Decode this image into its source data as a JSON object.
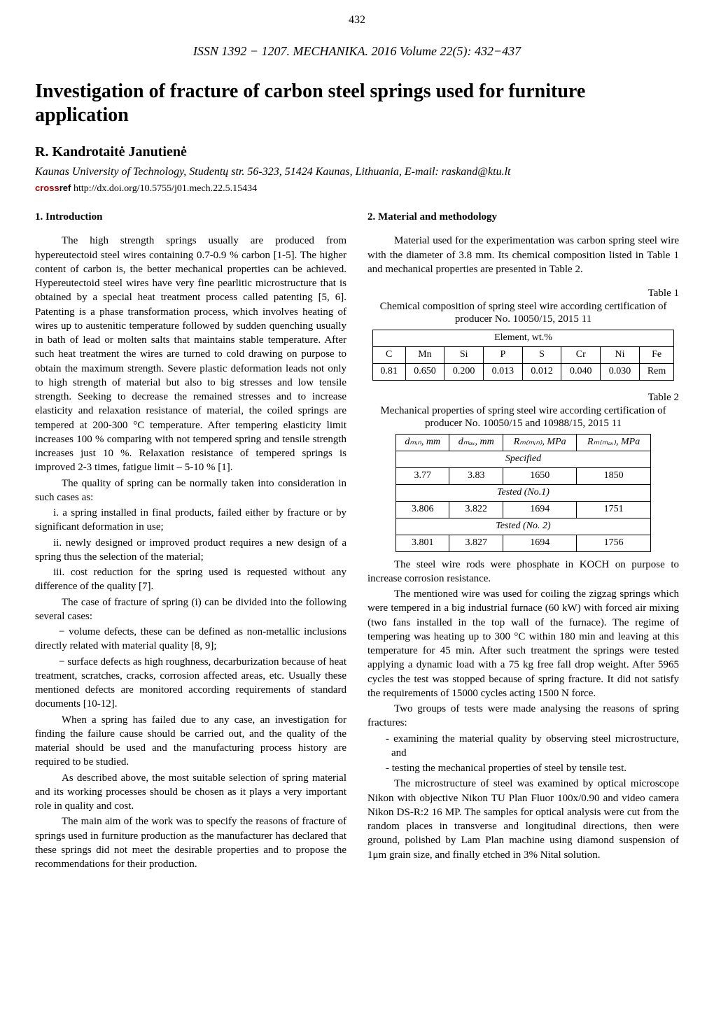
{
  "page_number": "432",
  "issn_line": "ISSN 1392 − 1207. MECHANIKA. 2016 Volume 22(5): 432−437",
  "title": "Investigation of fracture of carbon steel springs used for furniture application",
  "author": "R. Kandrotaitė Janutienė",
  "affiliation": "Kaunas University of Technology, Studentų str. 56-323, 51424 Kaunas, Lithuania, E-mail: raskand@ktu.lt",
  "crossref_prefix": "cross",
  "crossref_suffix": "ref",
  "doi": " http://dx.doi.org/10.5755/j01.mech.22.5.15434",
  "section1_head": "1. Introduction",
  "intro_p1": "The high strength springs usually are produced from hypereutectoid steel wires containing 0.7-0.9 % carbon [1-5]. The higher content of carbon is, the better mechanical properties can be achieved. Hypereutectoid steel wires have very fine pearlitic microstructure that is obtained by a special heat treatment process called patenting [5, 6]. Patenting is a phase transformation process, which involves heating of wires up to austenitic temperature followed by sudden quenching usually in bath of lead or molten salts that maintains stable temperature. After such heat treatment the wires are turned to cold drawing on purpose to obtain the maximum strength. Severe plastic deformation leads not only to high strength of material but also to big stresses and low tensile strength. Seeking to decrease the remained stresses and to increase elasticity and relaxation resistance of material, the coiled springs are tempered at 200-300 °C temperature. After tempering elasticity limit increases 100 % comparing with not tempered spring and tensile strength increases just 10 %. Relaxation resistance of tempered springs is improved 2-3 times, fatigue limit – 5-10 % [1].",
  "intro_p2": "The quality of spring can be normally taken into consideration in such cases as:",
  "intro_item_i": "i.   a spring installed in final products, failed either by fracture or by significant deformation in use;",
  "intro_item_ii": "ii.   newly designed or improved product requires a new design of a spring thus the selection of the material;",
  "intro_item_iii": "iii.   cost reduction for the spring used is requested without any difference of the quality [7].",
  "intro_p3": "The case of fracture of spring (i) can be divided into the following several cases:",
  "intro_dash1": "− volume defects, these can be defined as non-metallic inclusions directly related with material quality [8, 9];",
  "intro_dash2": "− surface defects as high roughness, decarburization because of heat treatment, scratches, cracks, corrosion affected areas, etc. Usually these mentioned defects are monitored according requirements of standard documents [10-12].",
  "intro_p4": "When a spring has failed due to any case, an investigation for finding the failure cause should be carried out, and the quality of the material should be used and the manufacturing process history are required to be studied.",
  "intro_p5": "As described above, the most suitable selection of spring material and its working processes should be chosen as it plays a very important role in quality and cost.",
  "intro_p6": "The main aim of the work was to specify the reasons of fracture of springs used in furniture production as the manufacturer has declared that these springs did not meet the desirable properties and to propose the recommendations for their production.",
  "section2_head": "2. Material and methodology",
  "meth_p1": "Material used for the experimentation was carbon spring steel wire with the diameter of 3.8 mm. Its chemical composition listed in Table 1 and mechanical properties are presented in Table 2.",
  "table1_label": "Table 1",
  "table1_caption": "Chemical composition of spring steel wire according certification of producer No. 10050/15, 2015 11",
  "table1": {
    "header_span": "Element, wt.%",
    "cols": [
      "C",
      "Mn",
      "Si",
      "P",
      "S",
      "Cr",
      "Ni",
      "Fe"
    ],
    "row": [
      "0.81",
      "0.650",
      "0.200",
      "0.013",
      "0.012",
      "0.040",
      "0.030",
      "Rem"
    ]
  },
  "table2_label": "Table 2",
  "table2_caption": "Mechanical properties of spring steel wire according certification of producer No. 10050/15 and 10988/15, 2015 11",
  "table2": {
    "cols": [
      "dₘᵢₙ, mm",
      "dₘₐₓ, mm",
      "Rₘ₍ₘᵢₙ₎, MPa",
      "Rₘ₍ₘₐₓ₎, MPa"
    ],
    "section1": "Specified",
    "row1": [
      "3.77",
      "3.83",
      "1650",
      "1850"
    ],
    "section2": "Tested (No.1)",
    "row2": [
      "3.806",
      "3.822",
      "1694",
      "1751"
    ],
    "section3": "Tested (No. 2)",
    "row3": [
      "3.801",
      "3.827",
      "1694",
      "1756"
    ]
  },
  "meth_p2": "The steel wire rods were phosphate in KOCH on purpose to increase corrosion resistance.",
  "meth_p3": "The mentioned wire was used for coiling the zigzag springs which were tempered in a big industrial furnace (60 kW) with forced air mixing (two fans installed in the top wall of the furnace). The regime of tempering was heating up to 300 °C within 180 min and leaving at this temperature for 45 min. After such treatment the springs were tested applying a dynamic load with a 75 kg free fall drop weight. After 5965 cycles the test was stopped because of spring fracture. It did not satisfy the requirements of 15000 cycles acting 1500 N force.",
  "meth_p4": "Two groups of tests were made analysing the reasons of spring fractures:",
  "meth_sub1": "- examining the material quality by observing steel microstructure, and",
  "meth_sub2": "- testing the mechanical properties of steel by tensile test.",
  "meth_p5": "The microstructure of steel was examined by optical microscope Nikon with objective Nikon TU Plan Fluor 100x/0.90 and video camera Nikon DS-R:2 16 MP. The samples for optical analysis were cut from the random places in transverse and longitudinal directions, then were ground, polished by Lam Plan machine using diamond suspension of 1μm grain size, and finally etched in 3% Nital solution."
}
